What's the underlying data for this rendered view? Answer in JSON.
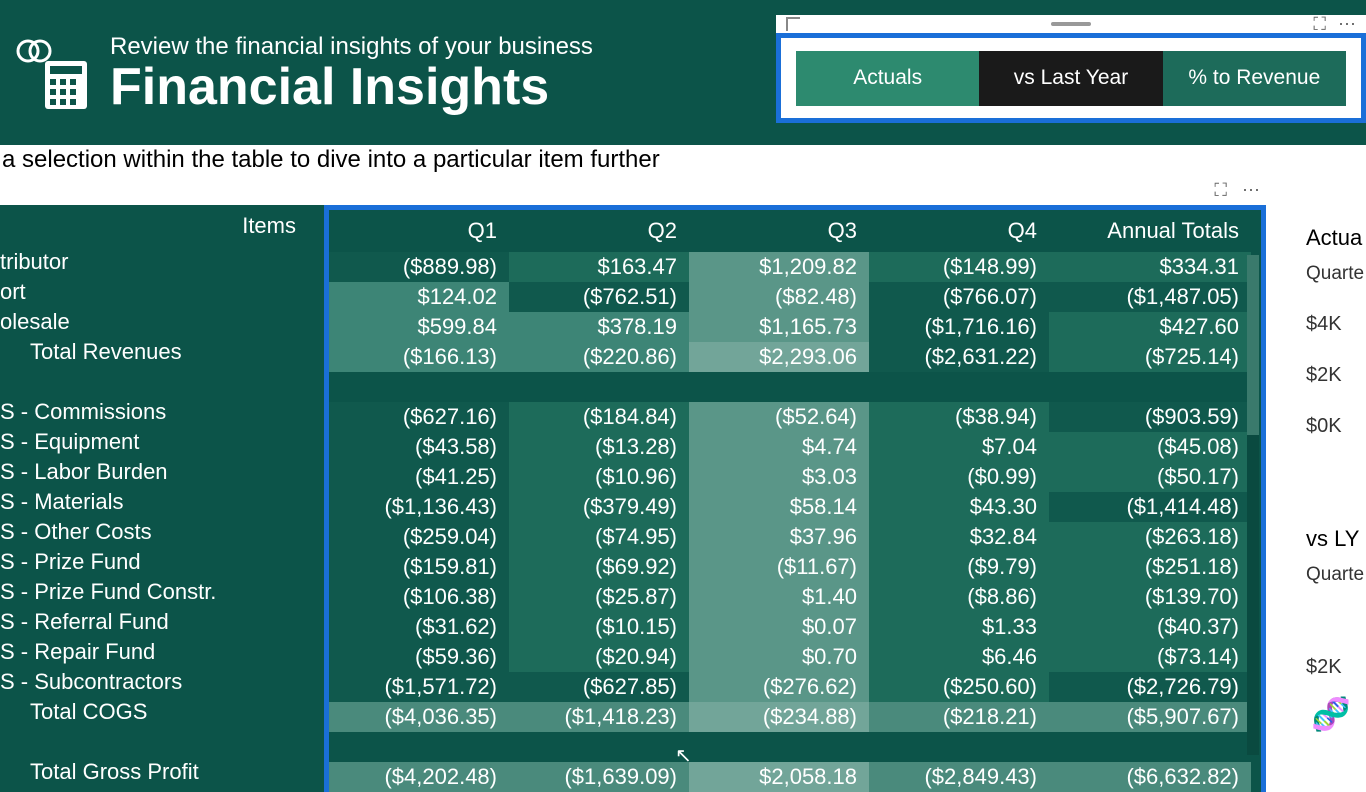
{
  "header": {
    "subtitle": "Review the financial insights of your business",
    "title": "Financial Insights"
  },
  "tabs": [
    {
      "label": "Actuals",
      "style": "active"
    },
    {
      "label": "vs Last Year",
      "style": "dark"
    },
    {
      "label": "% to Revenue",
      "style": "teal"
    }
  ],
  "instruction": "ke a selection within the table to dive into a particular item further",
  "table": {
    "items_header": "Items",
    "columns": [
      "Q1",
      "Q2",
      "Q3",
      "Q4",
      "Annual Totals"
    ],
    "rows": [
      {
        "label": "tributor",
        "indent": 0,
        "cells": [
          {
            "v": "($889.98)",
            "bg": "bg-dark"
          },
          {
            "v": "$163.47",
            "bg": "bg-med"
          },
          {
            "v": "$1,209.82",
            "bg": "bg-lighter"
          },
          {
            "v": "($148.99)",
            "bg": "bg-med"
          },
          {
            "v": "$334.31",
            "bg": "bg-med"
          }
        ]
      },
      {
        "label": "ort",
        "indent": 0,
        "cells": [
          {
            "v": "$124.02",
            "bg": "bg-light"
          },
          {
            "v": "($762.51)",
            "bg": "bg-dark"
          },
          {
            "v": "($82.48)",
            "bg": "bg-lighter"
          },
          {
            "v": "($766.07)",
            "bg": "bg-dark"
          },
          {
            "v": "($1,487.05)",
            "bg": "bg-dark"
          }
        ]
      },
      {
        "label": "olesale",
        "indent": 0,
        "cells": [
          {
            "v": "$599.84",
            "bg": "bg-light"
          },
          {
            "v": "$378.19",
            "bg": "bg-light"
          },
          {
            "v": "$1,165.73",
            "bg": "bg-lighter"
          },
          {
            "v": "($1,716.16)",
            "bg": "bg-dark"
          },
          {
            "v": "$427.60",
            "bg": "bg-med"
          }
        ]
      },
      {
        "label": "Total Revenues",
        "indent": 1,
        "bold": true,
        "cells": [
          {
            "v": "($166.13)",
            "bg": "bg-light"
          },
          {
            "v": "($220.86)",
            "bg": "bg-light"
          },
          {
            "v": "$2,293.06",
            "bg": "bg-lightest"
          },
          {
            "v": "($2,631.22)",
            "bg": "bg-dark"
          },
          {
            "v": "($725.14)",
            "bg": "bg-med"
          }
        ]
      },
      {
        "spacer": true
      },
      {
        "label": "S - Commissions",
        "indent": 0,
        "cells": [
          {
            "v": "($627.16)",
            "bg": "bg-dark"
          },
          {
            "v": "($184.84)",
            "bg": "bg-med"
          },
          {
            "v": "($52.64)",
            "bg": "bg-lighter"
          },
          {
            "v": "($38.94)",
            "bg": "bg-med"
          },
          {
            "v": "($903.59)",
            "bg": "bg-dark"
          }
        ]
      },
      {
        "label": "S - Equipment",
        "indent": 0,
        "cells": [
          {
            "v": "($43.58)",
            "bg": "bg-dark"
          },
          {
            "v": "($13.28)",
            "bg": "bg-med"
          },
          {
            "v": "$4.74",
            "bg": "bg-lighter"
          },
          {
            "v": "$7.04",
            "bg": "bg-med"
          },
          {
            "v": "($45.08)",
            "bg": "bg-med"
          }
        ]
      },
      {
        "label": "S - Labor Burden",
        "indent": 0,
        "cells": [
          {
            "v": "($41.25)",
            "bg": "bg-dark"
          },
          {
            "v": "($10.96)",
            "bg": "bg-med"
          },
          {
            "v": "$3.03",
            "bg": "bg-lighter"
          },
          {
            "v": "($0.99)",
            "bg": "bg-med"
          },
          {
            "v": "($50.17)",
            "bg": "bg-med"
          }
        ]
      },
      {
        "label": "S - Materials",
        "indent": 0,
        "cells": [
          {
            "v": "($1,136.43)",
            "bg": "bg-dark"
          },
          {
            "v": "($379.49)",
            "bg": "bg-med"
          },
          {
            "v": "$58.14",
            "bg": "bg-lighter"
          },
          {
            "v": "$43.30",
            "bg": "bg-med"
          },
          {
            "v": "($1,414.48)",
            "bg": "bg-dark"
          }
        ]
      },
      {
        "label": "S - Other Costs",
        "indent": 0,
        "cells": [
          {
            "v": "($259.04)",
            "bg": "bg-dark"
          },
          {
            "v": "($74.95)",
            "bg": "bg-med"
          },
          {
            "v": "$37.96",
            "bg": "bg-lighter"
          },
          {
            "v": "$32.84",
            "bg": "bg-med"
          },
          {
            "v": "($263.18)",
            "bg": "bg-med"
          }
        ]
      },
      {
        "label": "S - Prize Fund",
        "indent": 0,
        "cells": [
          {
            "v": "($159.81)",
            "bg": "bg-dark"
          },
          {
            "v": "($69.92)",
            "bg": "bg-med"
          },
          {
            "v": "($11.67)",
            "bg": "bg-lighter"
          },
          {
            "v": "($9.79)",
            "bg": "bg-med"
          },
          {
            "v": "($251.18)",
            "bg": "bg-med"
          }
        ]
      },
      {
        "label": "S - Prize Fund Constr.",
        "indent": 0,
        "cells": [
          {
            "v": "($106.38)",
            "bg": "bg-dark"
          },
          {
            "v": "($25.87)",
            "bg": "bg-med"
          },
          {
            "v": "$1.40",
            "bg": "bg-lighter"
          },
          {
            "v": "($8.86)",
            "bg": "bg-med"
          },
          {
            "v": "($139.70)",
            "bg": "bg-med"
          }
        ]
      },
      {
        "label": "S - Referral Fund",
        "indent": 0,
        "cells": [
          {
            "v": "($31.62)",
            "bg": "bg-dark"
          },
          {
            "v": "($10.15)",
            "bg": "bg-med"
          },
          {
            "v": "$0.07",
            "bg": "bg-lighter"
          },
          {
            "v": "$1.33",
            "bg": "bg-med"
          },
          {
            "v": "($40.37)",
            "bg": "bg-med"
          }
        ]
      },
      {
        "label": "S - Repair Fund",
        "indent": 0,
        "cells": [
          {
            "v": "($59.36)",
            "bg": "bg-dark"
          },
          {
            "v": "($20.94)",
            "bg": "bg-med"
          },
          {
            "v": "$0.70",
            "bg": "bg-lighter"
          },
          {
            "v": "$6.46",
            "bg": "bg-med"
          },
          {
            "v": "($73.14)",
            "bg": "bg-med"
          }
        ]
      },
      {
        "label": "S - Subcontractors",
        "indent": 0,
        "cells": [
          {
            "v": "($1,571.72)",
            "bg": "bg-dark"
          },
          {
            "v": "($627.85)",
            "bg": "bg-dark"
          },
          {
            "v": "($276.62)",
            "bg": "bg-lighter"
          },
          {
            "v": "($250.60)",
            "bg": "bg-med"
          },
          {
            "v": "($2,726.79)",
            "bg": "bg-dark"
          }
        ]
      },
      {
        "label": "Total COGS",
        "indent": 1,
        "bold": true,
        "cells": [
          {
            "v": "($4,036.35)",
            "bg": "bg-bold"
          },
          {
            "v": "($1,418.23)",
            "bg": "bg-bold"
          },
          {
            "v": "($234.88)",
            "bg": "bg-lightest"
          },
          {
            "v": "($218.21)",
            "bg": "bg-bold"
          },
          {
            "v": "($5,907.67)",
            "bg": "bg-bold"
          }
        ]
      },
      {
        "spacer": true
      },
      {
        "label": "Total Gross Profit",
        "indent": 1,
        "bold": true,
        "cells": [
          {
            "v": "($4,202.48)",
            "bg": "bg-bold"
          },
          {
            "v": "($1,639.09)",
            "bg": "bg-bold"
          },
          {
            "v": "$2,058.18",
            "bg": "bg-lightest"
          },
          {
            "v": "($2,849.43)",
            "bg": "bg-bold"
          },
          {
            "v": "($6,632.82)",
            "bg": "bg-bold"
          }
        ]
      }
    ]
  },
  "right_panel": {
    "heading1": "Actua",
    "sub1": "Quarte",
    "axis": [
      "$4K",
      "$2K",
      "$0K"
    ],
    "heading2": "vs LY",
    "sub2": "Quarte",
    "axis2": "$2K"
  },
  "colors": {
    "header_bg": "#0c5449",
    "highlight_border": "#1a6fd8",
    "tab_active": "#2d8a6f",
    "tab_dark": "#1a1a1a",
    "tab_teal": "#1d6b5a"
  }
}
